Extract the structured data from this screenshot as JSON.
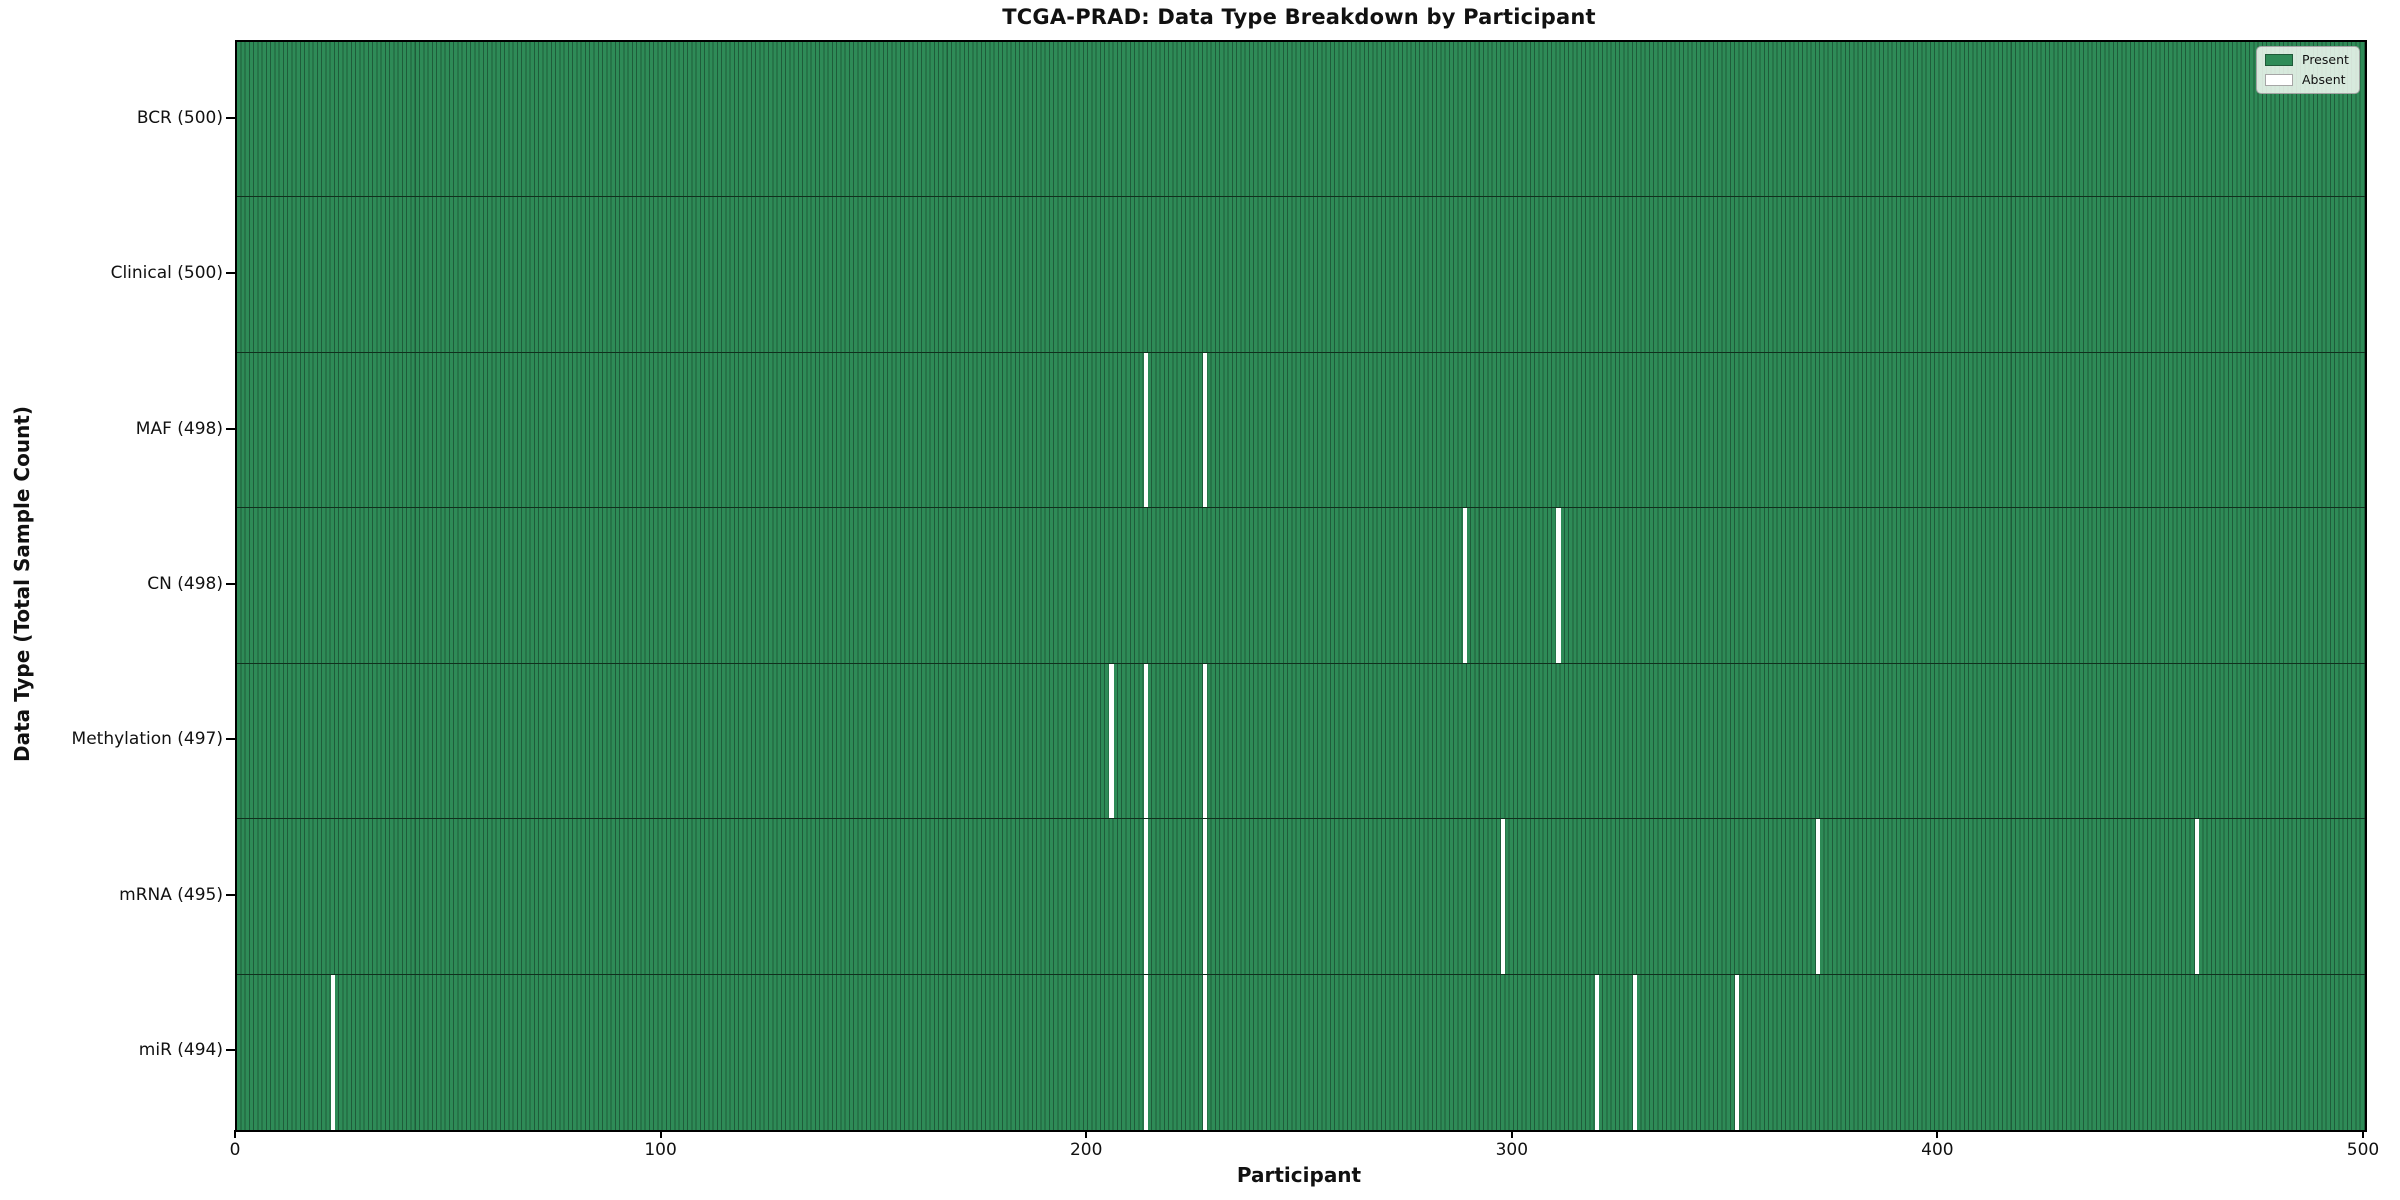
{
  "chart_data": {
    "type": "heatmap",
    "title": "TCGA-PRAD: Data Type Breakdown by Participant",
    "xlabel": "Participant",
    "ylabel": "Data Type (Total Sample Count)",
    "x_range": [
      0,
      500
    ],
    "x_ticks": [
      0,
      100,
      200,
      300,
      400,
      500
    ],
    "n_participants": 500,
    "grid": false,
    "rows": [
      {
        "name": "BCR",
        "label": "BCR (500)",
        "total": 500,
        "absent_participants": []
      },
      {
        "name": "Clinical",
        "label": "Clinical (500)",
        "total": 500,
        "absent_participants": []
      },
      {
        "name": "MAF",
        "label": "MAF (498)",
        "total": 498,
        "absent_participants": [
          213,
          227
        ]
      },
      {
        "name": "CN",
        "label": "CN (498)",
        "total": 498,
        "absent_participants": [
          288,
          310
        ]
      },
      {
        "name": "Methylation",
        "label": "Methylation (497)",
        "total": 497,
        "absent_participants": [
          205,
          213,
          227
        ]
      },
      {
        "name": "mRNA",
        "label": "mRNA (495)",
        "total": 495,
        "absent_participants": [
          213,
          227,
          297,
          371,
          460
        ]
      },
      {
        "name": "miR",
        "label": "miR (494)",
        "total": 494,
        "absent_participants": [
          22,
          213,
          227,
          319,
          328,
          352
        ]
      }
    ],
    "legend": {
      "position": "upper right",
      "entries": [
        {
          "label": "Present",
          "color": "#2e8b57"
        },
        {
          "label": "Absent",
          "color": "#ffffff"
        }
      ]
    },
    "colors": {
      "present_fill": "#2e8b57",
      "present_edge": "#1e5c3a",
      "absent_fill": "#ffffff",
      "row_separator": "#10301d",
      "plot_border": "#000000"
    }
  }
}
